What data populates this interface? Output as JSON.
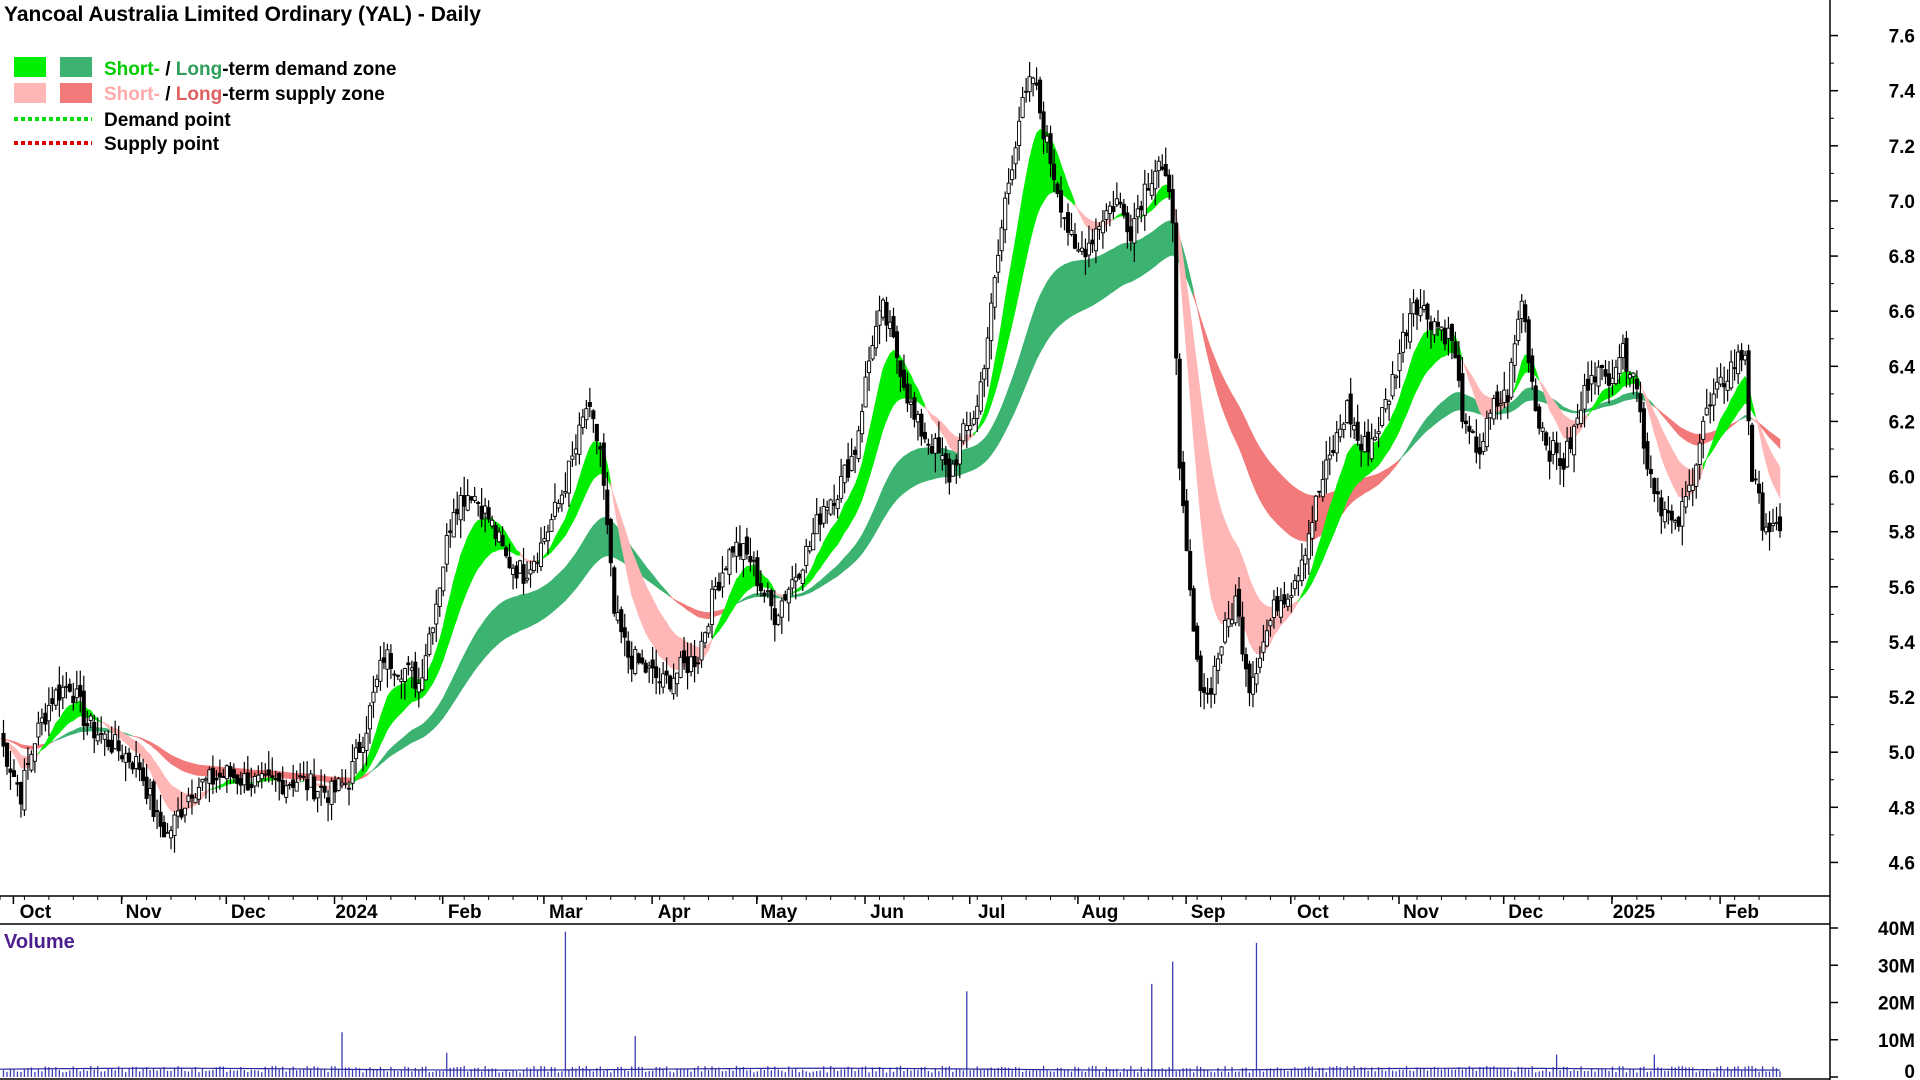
{
  "chart_data": {
    "type": "candlestick",
    "title": "Yancoal Australia Limited Ordinary (YAL) - Daily",
    "legend": {
      "items": [
        {
          "prefix": "Short-",
          "sep": " / ",
          "mid": "Long",
          "suffix": "-term demand zone",
          "colors": [
            "#00ee00",
            "#3cb371"
          ]
        },
        {
          "prefix": "Short-",
          "sep": " / ",
          "mid": "Long",
          "suffix": "-term supply zone",
          "colors": [
            "#ffb6b6",
            "#f27a7a"
          ]
        },
        {
          "label": "Demand point",
          "color": "#00dd00"
        },
        {
          "label": "Supply point",
          "color": "#dd0000"
        }
      ]
    },
    "price_axis": {
      "ticks": [
        "7.6",
        "7.4",
        "7.2",
        "7.0",
        "6.8",
        "6.6",
        "6.4",
        "6.2",
        "6.0",
        "5.8",
        "5.6",
        "5.4",
        "5.2",
        "5.0",
        "4.8",
        "4.6"
      ],
      "range": [
        4.5,
        7.7
      ]
    },
    "x_labels": [
      "Oct",
      "Nov",
      "Dec",
      "2024",
      "Feb",
      "Mar",
      "Apr",
      "May",
      "Jun",
      "Jul",
      "Aug",
      "Sep",
      "Oct",
      "Nov",
      "Dec",
      "2025",
      "Feb"
    ],
    "x_label_days": [
      9,
      40,
      70,
      101,
      132,
      161,
      192,
      222,
      253,
      283,
      314,
      345,
      375,
      406,
      436,
      467,
      498
    ],
    "total_days": 510,
    "price_anchors": [
      [
        0,
        5.05
      ],
      [
        6,
        4.85
      ],
      [
        10,
        5.05
      ],
      [
        15,
        5.2
      ],
      [
        20,
        5.25
      ],
      [
        25,
        5.1
      ],
      [
        30,
        5.05
      ],
      [
        35,
        5.0
      ],
      [
        40,
        4.95
      ],
      [
        45,
        4.75
      ],
      [
        48,
        4.7
      ],
      [
        55,
        4.87
      ],
      [
        65,
        4.92
      ],
      [
        75,
        4.88
      ],
      [
        85,
        4.9
      ],
      [
        95,
        4.85
      ],
      [
        100,
        4.9
      ],
      [
        105,
        5.1
      ],
      [
        110,
        5.35
      ],
      [
        116,
        5.3
      ],
      [
        120,
        5.25
      ],
      [
        125,
        5.55
      ],
      [
        130,
        5.9
      ],
      [
        135,
        5.95
      ],
      [
        140,
        5.85
      ],
      [
        145,
        5.7
      ],
      [
        150,
        5.65
      ],
      [
        155,
        5.75
      ],
      [
        160,
        5.9
      ],
      [
        165,
        6.1
      ],
      [
        168,
        6.25
      ],
      [
        172,
        6.1
      ],
      [
        176,
        5.5
      ],
      [
        180,
        5.35
      ],
      [
        185,
        5.3
      ],
      [
        190,
        5.25
      ],
      [
        195,
        5.3
      ],
      [
        200,
        5.35
      ],
      [
        205,
        5.6
      ],
      [
        210,
        5.75
      ],
      [
        215,
        5.7
      ],
      [
        218,
        5.6
      ],
      [
        222,
        5.5
      ],
      [
        228,
        5.65
      ],
      [
        232,
        5.75
      ],
      [
        236,
        5.9
      ],
      [
        240,
        5.95
      ],
      [
        245,
        6.1
      ],
      [
        250,
        6.5
      ],
      [
        253,
        6.6
      ],
      [
        258,
        6.4
      ],
      [
        262,
        6.2
      ],
      [
        268,
        6.1
      ],
      [
        272,
        6.0
      ],
      [
        276,
        6.15
      ],
      [
        280,
        6.25
      ],
      [
        284,
        6.6
      ],
      [
        288,
        7.0
      ],
      [
        292,
        7.3
      ],
      [
        296,
        7.45
      ],
      [
        300,
        7.2
      ],
      [
        304,
        7.0
      ],
      [
        308,
        6.8
      ],
      [
        312,
        6.85
      ],
      [
        316,
        6.95
      ],
      [
        320,
        7.0
      ],
      [
        324,
        6.9
      ],
      [
        328,
        7.05
      ],
      [
        332,
        7.15
      ],
      [
        336,
        6.95
      ],
      [
        338,
        6.0
      ],
      [
        340,
        5.7
      ],
      [
        343,
        5.3
      ],
      [
        346,
        5.2
      ],
      [
        350,
        5.4
      ],
      [
        354,
        5.55
      ],
      [
        358,
        5.25
      ],
      [
        362,
        5.4
      ],
      [
        366,
        5.55
      ],
      [
        370,
        5.6
      ],
      [
        374,
        5.75
      ],
      [
        378,
        5.95
      ],
      [
        382,
        6.1
      ],
      [
        386,
        6.25
      ],
      [
        390,
        6.1
      ],
      [
        394,
        6.15
      ],
      [
        398,
        6.3
      ],
      [
        402,
        6.5
      ],
      [
        405,
        6.65
      ],
      [
        408,
        6.6
      ],
      [
        412,
        6.55
      ],
      [
        416,
        6.5
      ],
      [
        420,
        6.15
      ],
      [
        424,
        6.1
      ],
      [
        428,
        6.25
      ],
      [
        432,
        6.3
      ],
      [
        436,
        6.65
      ],
      [
        440,
        6.25
      ],
      [
        444,
        6.1
      ],
      [
        448,
        6.05
      ],
      [
        452,
        6.2
      ],
      [
        456,
        6.4
      ],
      [
        460,
        6.35
      ],
      [
        464,
        6.45
      ],
      [
        468,
        6.4
      ],
      [
        472,
        6.05
      ],
      [
        476,
        5.9
      ],
      [
        480,
        5.8
      ],
      [
        484,
        5.95
      ],
      [
        488,
        6.2
      ],
      [
        492,
        6.3
      ],
      [
        496,
        6.4
      ],
      [
        500,
        6.45
      ],
      [
        502,
        6.0
      ],
      [
        505,
        5.85
      ],
      [
        508,
        5.8
      ],
      [
        510,
        5.78
      ]
    ],
    "volume_panel": {
      "label": "Volume",
      "ticks": [
        "40M",
        "30M",
        "20M",
        "10M",
        "0"
      ],
      "max": 40,
      "spikes": [
        [
          98,
          12
        ],
        [
          128,
          6.5
        ],
        [
          162,
          39
        ],
        [
          182,
          11
        ],
        [
          277,
          23
        ],
        [
          330,
          25
        ],
        [
          336,
          31
        ],
        [
          360,
          36
        ],
        [
          446,
          6
        ],
        [
          474,
          6
        ]
      ]
    },
    "colors": {
      "demand_short": "#00ee00",
      "demand_long": "#3cb371",
      "supply_short": "#ffb6b6",
      "supply_long": "#f27a7a",
      "crossover": "#ff6a1a",
      "candle": "#000000",
      "volume": "#3b3bb0",
      "axis": "#000000",
      "volume_label": "#4b1e8c"
    }
  }
}
